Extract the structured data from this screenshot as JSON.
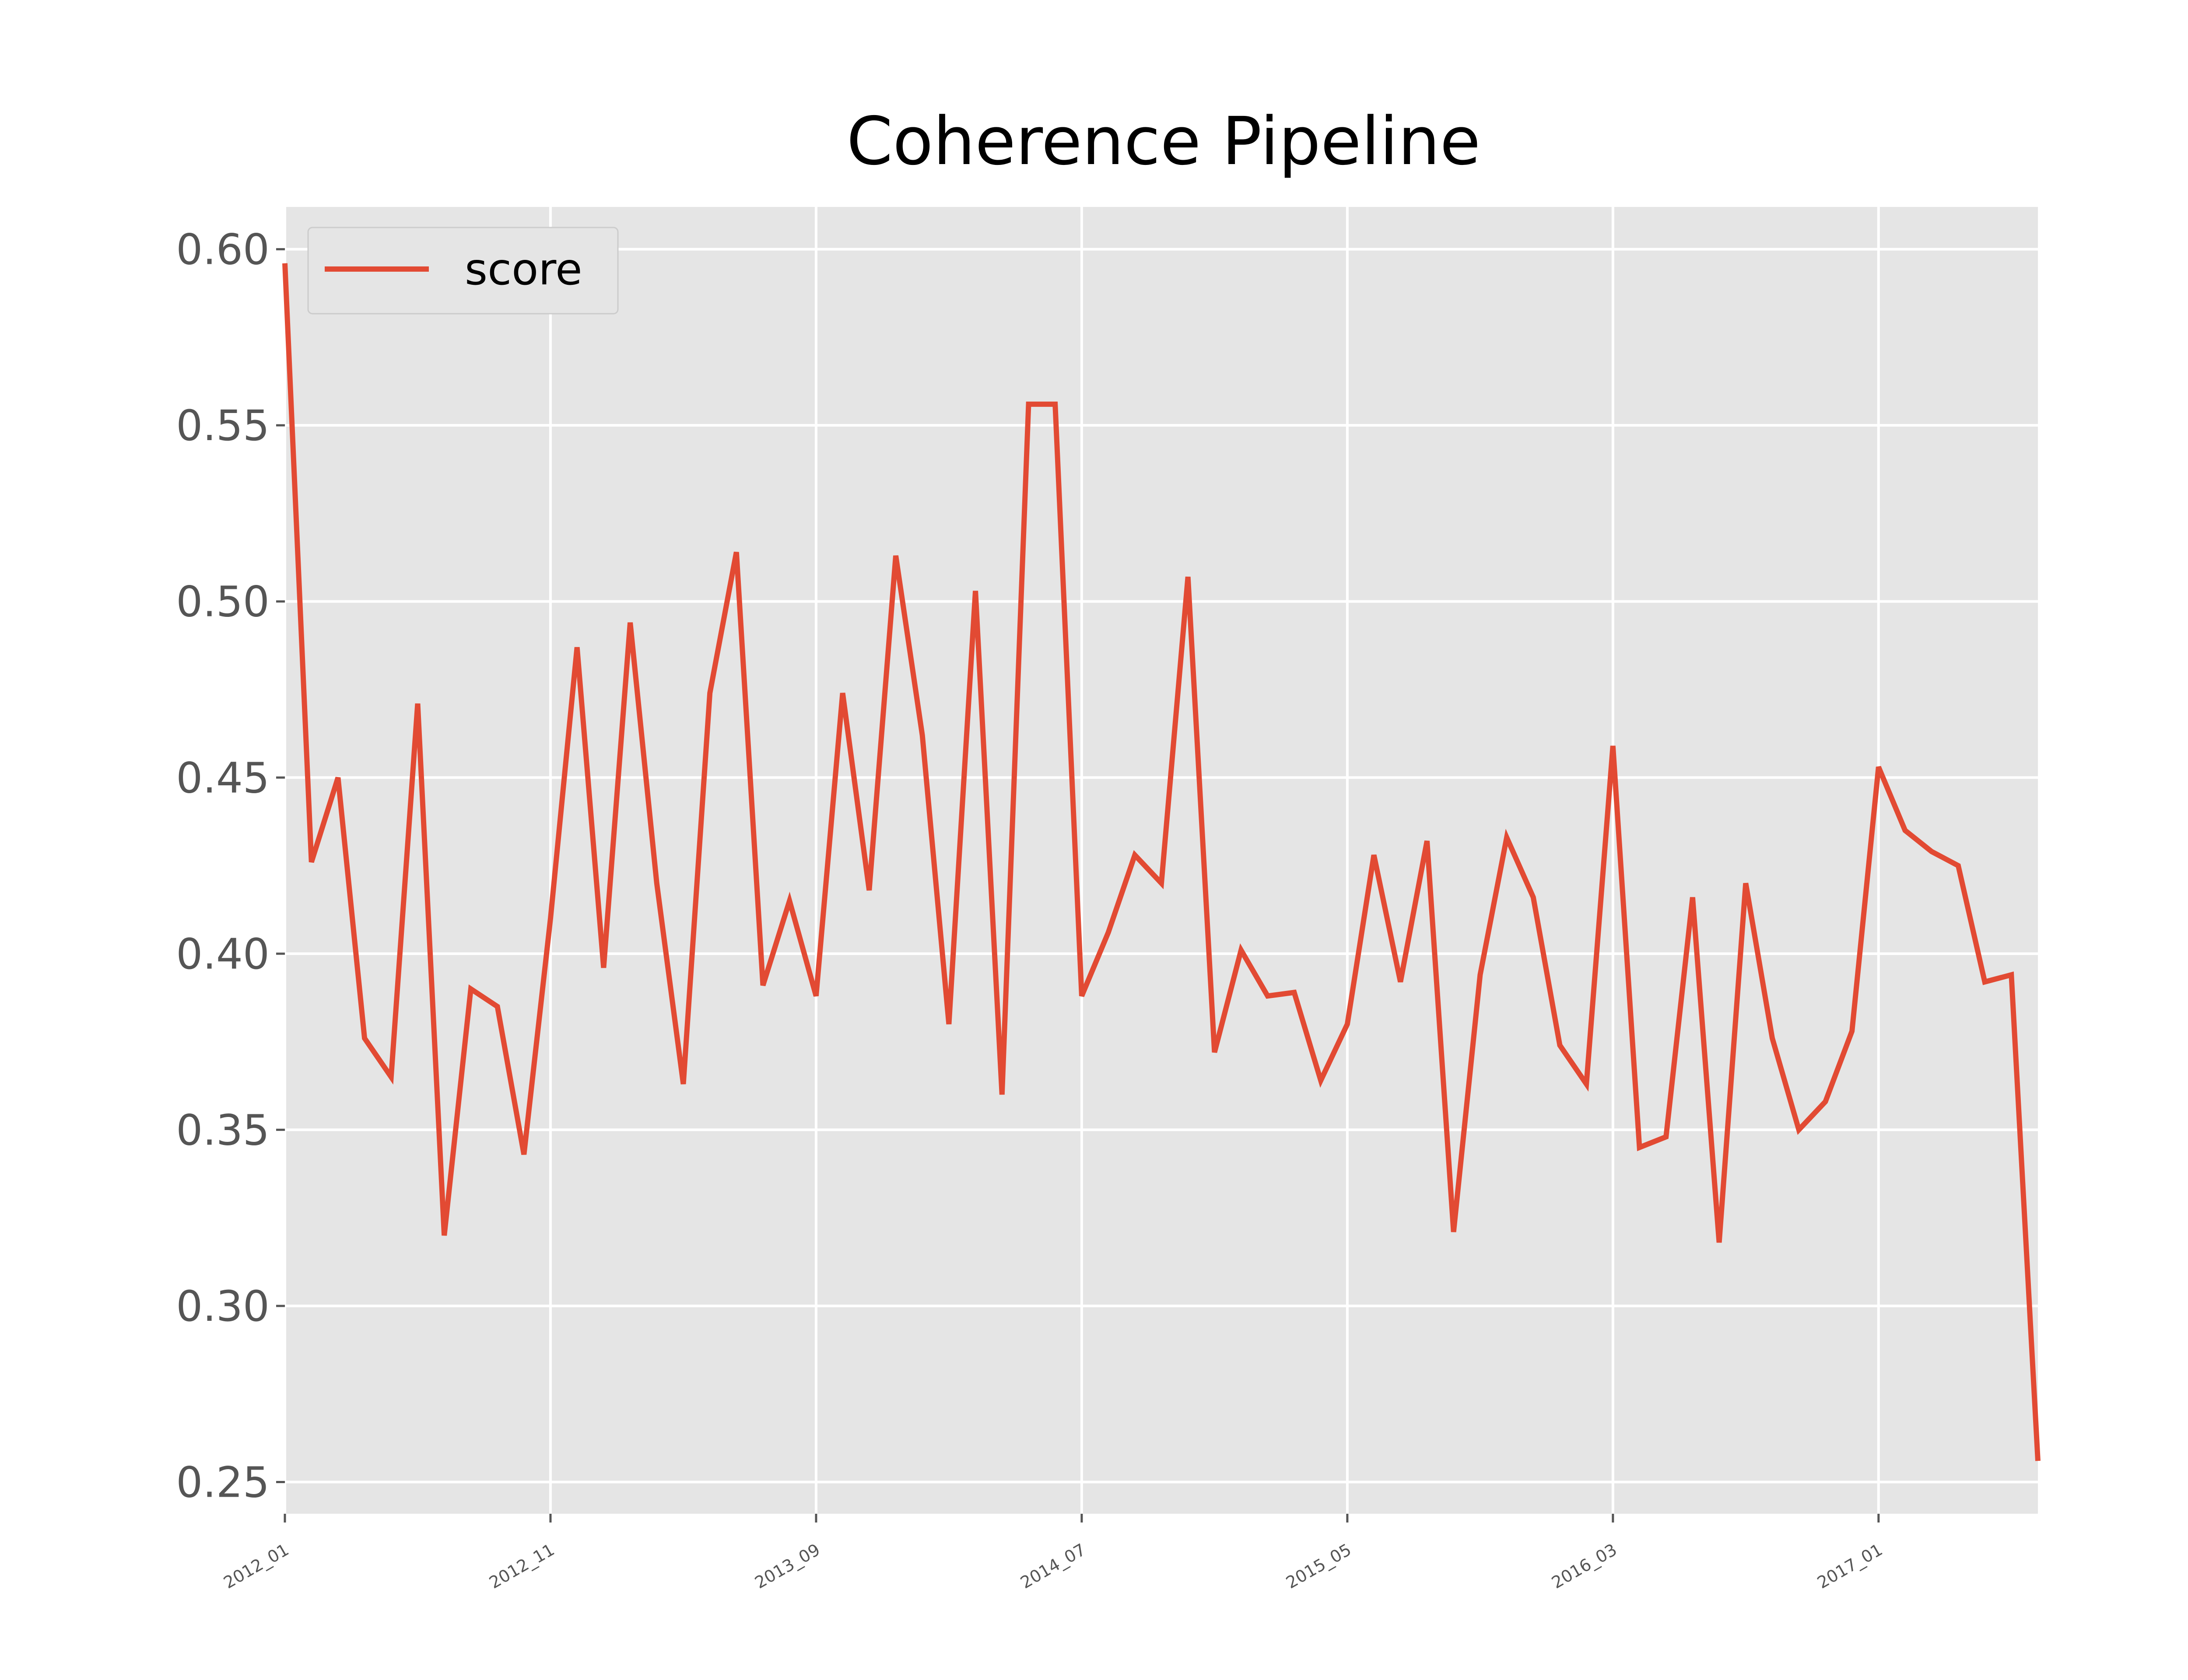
{
  "chart_data": {
    "type": "line",
    "title": "Coherence Pipeline",
    "xlabel": "",
    "ylabel": "",
    "x_tick_labels": [
      "2012_01",
      "2012_11",
      "2013_09",
      "2014_07",
      "2015_05",
      "2016_03",
      "2017_01"
    ],
    "y_ticks": [
      0.25,
      0.3,
      0.35,
      0.4,
      0.45,
      0.5,
      0.55,
      0.6
    ],
    "y_tick_labels": [
      "0.25",
      "0.30",
      "0.35",
      "0.40",
      "0.45",
      "0.50",
      "0.55",
      "0.60"
    ],
    "ylim": [
      0.241,
      0.612
    ],
    "grid": true,
    "legend": {
      "position": "top-left",
      "entries": [
        "score"
      ]
    },
    "colors": {
      "plot_background": "#e5e5e5",
      "grid": "#ffffff",
      "line": "#e24a33",
      "legend_background": "#e5e5e5",
      "legend_border": "#cccccc",
      "tick_text": "#555555",
      "title_text": "#000000"
    },
    "x_start": "2012-01",
    "x_end": "2017-07",
    "series": [
      {
        "name": "score",
        "x": [
          "2012-01",
          "2012-02",
          "2012-03",
          "2012-04",
          "2012-05",
          "2012-06",
          "2012-07",
          "2012-08",
          "2012-09",
          "2012-10",
          "2012-11",
          "2012-12",
          "2013-01",
          "2013-02",
          "2013-03",
          "2013-04",
          "2013-05",
          "2013-06",
          "2013-07",
          "2013-08",
          "2013-09",
          "2013-10",
          "2013-11",
          "2013-12",
          "2014-01",
          "2014-02",
          "2014-03",
          "2014-04",
          "2014-05",
          "2014-06",
          "2014-07",
          "2014-08",
          "2014-09",
          "2014-10",
          "2014-11",
          "2014-12",
          "2015-01",
          "2015-02",
          "2015-03",
          "2015-04",
          "2015-05",
          "2015-06",
          "2015-07",
          "2015-08",
          "2015-09",
          "2015-10",
          "2015-11",
          "2015-12",
          "2016-01",
          "2016-02",
          "2016-03",
          "2016-04",
          "2016-05",
          "2016-06",
          "2016-07",
          "2016-08",
          "2016-09",
          "2016-10",
          "2016-11",
          "2016-12",
          "2017-01",
          "2017-02",
          "2017-03",
          "2017-04",
          "2017-05",
          "2017-06",
          "2017-07"
        ],
        "values": [
          0.596,
          0.426,
          0.45,
          0.376,
          0.365,
          0.471,
          0.32,
          0.39,
          0.385,
          0.343,
          0.41,
          0.487,
          0.396,
          0.494,
          0.42,
          0.363,
          0.474,
          0.514,
          0.391,
          0.415,
          0.388,
          0.474,
          0.418,
          0.513,
          0.462,
          0.38,
          0.503,
          0.36,
          0.556,
          0.556,
          0.388,
          0.406,
          0.428,
          0.42,
          0.507,
          0.372,
          0.401,
          0.388,
          0.389,
          0.364,
          0.38,
          0.428,
          0.392,
          0.432,
          0.321,
          0.394,
          0.433,
          0.416,
          0.374,
          0.363,
          0.459,
          0.345,
          0.348,
          0.416,
          0.318,
          0.42,
          0.376,
          0.35,
          0.358,
          0.378,
          0.453,
          0.435,
          0.429,
          0.425,
          0.392,
          0.394,
          0.256
        ]
      }
    ]
  }
}
